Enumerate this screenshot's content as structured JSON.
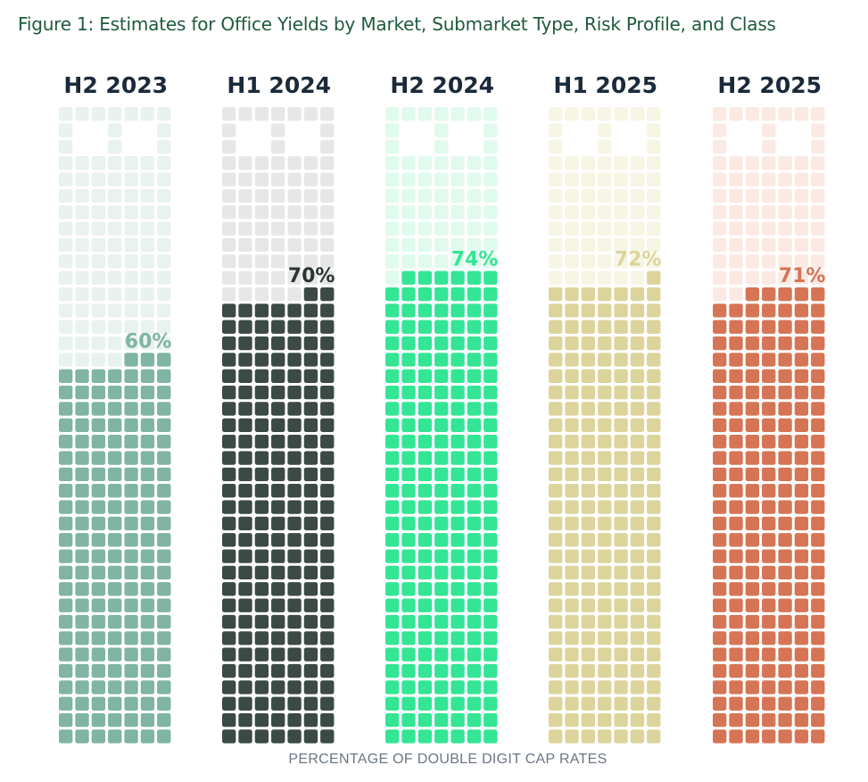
{
  "title": "Figure 1: Estimates for Office Yields by Market, Submarket Type, Risk Profile, and Class",
  "chart_data": {
    "type": "bar",
    "style": "waffle-column",
    "title": "Figure 1: Estimates for Office Yields by Market, Submarket Type, Risk Profile, and Class",
    "xlabel": "PERCENTAGE OF DOUBLE DIGIT CAP RATES",
    "ylabel": "",
    "ylim": [
      0,
      100
    ],
    "categories": [
      "H2 2023",
      "H1 2024",
      "H2 2024",
      "H1 2025",
      "H2 2025"
    ],
    "values": [
      60,
      70,
      74,
      72,
      71
    ],
    "labels": [
      "60%",
      "70%",
      "74%",
      "72%",
      "71%"
    ],
    "colors": [
      "#7fb5a1",
      "#3b4a46",
      "#34e595",
      "#dcd49b",
      "#d67555"
    ],
    "light_colors": [
      "#e8f2ee",
      "#e6e8e8",
      "#e0faee",
      "#f7f5e4",
      "#fbe9e3"
    ],
    "label_colors": [
      "#7fb5a1",
      "#2b3633",
      "#34e595",
      "#dcd49b",
      "#d67555"
    ]
  }
}
